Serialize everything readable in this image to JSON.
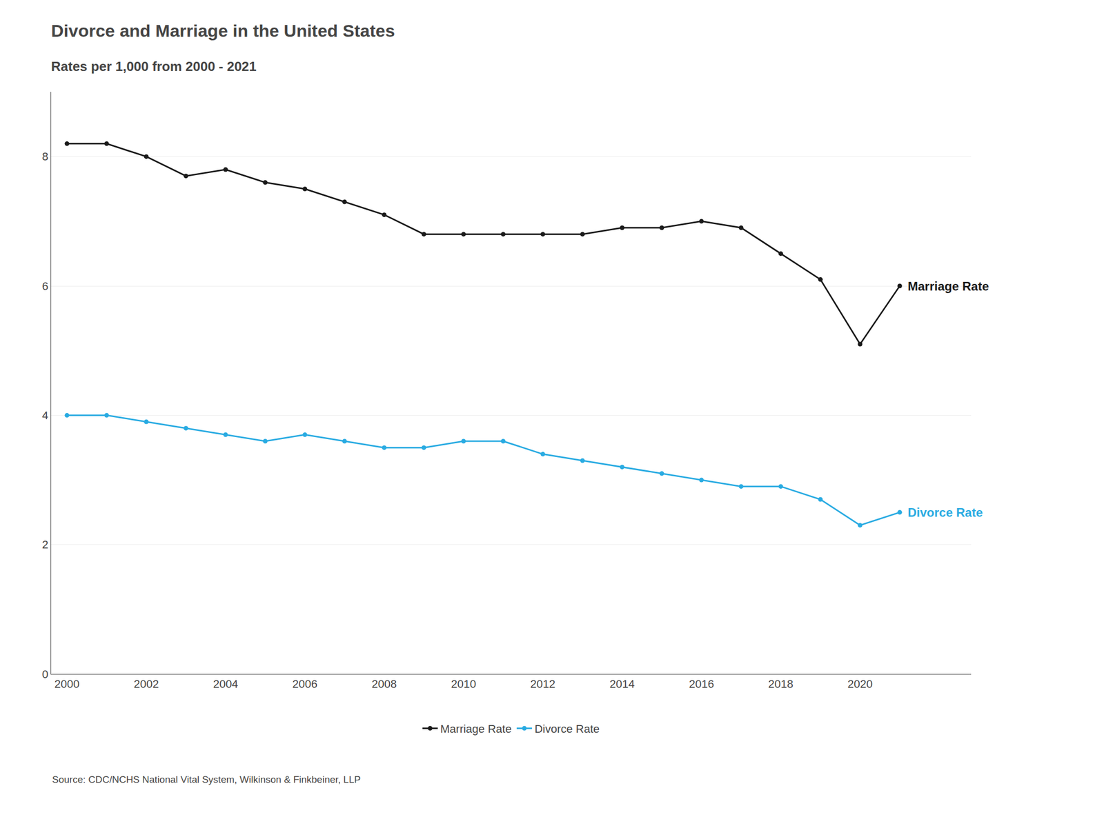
{
  "chart_data": {
    "type": "line",
    "title": "Divorce and Marriage in the United States",
    "subtitle": "Rates per 1,000 from 2000 - 2021",
    "source": "Source: CDC/NCHS National Vital System, Wilkinson & Finkbeiner, LLP",
    "x": [
      2000,
      2001,
      2002,
      2003,
      2004,
      2005,
      2006,
      2007,
      2008,
      2009,
      2010,
      2011,
      2012,
      2013,
      2014,
      2015,
      2016,
      2017,
      2018,
      2019,
      2020,
      2021
    ],
    "series": [
      {
        "name": "Marriage Rate",
        "color": "#1a1a1a",
        "marker": "circle",
        "line_style": "solid",
        "values": [
          8.2,
          8.2,
          8.0,
          7.7,
          7.8,
          7.6,
          7.5,
          7.3,
          7.1,
          6.8,
          6.8,
          6.8,
          6.8,
          6.8,
          6.9,
          6.9,
          7.0,
          6.9,
          6.5,
          6.1,
          5.1,
          6.0
        ]
      },
      {
        "name": "Divorce Rate",
        "color": "#29abe2",
        "marker": "circle",
        "line_style": "solid",
        "values": [
          4.0,
          4.0,
          3.9,
          3.8,
          3.7,
          3.6,
          3.7,
          3.6,
          3.5,
          3.5,
          3.6,
          3.6,
          3.4,
          3.3,
          3.2,
          3.1,
          3.0,
          2.9,
          2.9,
          2.7,
          2.3,
          2.5
        ]
      }
    ],
    "xlim": [
      1999.6,
      2022.8
    ],
    "xticks": [
      2000,
      2002,
      2004,
      2006,
      2008,
      2010,
      2012,
      2014,
      2016,
      2018,
      2020
    ],
    "ylim": [
      0,
      9
    ],
    "yticks": [
      0,
      2,
      4,
      6,
      8
    ],
    "grid": "y",
    "legend": "bottom"
  }
}
